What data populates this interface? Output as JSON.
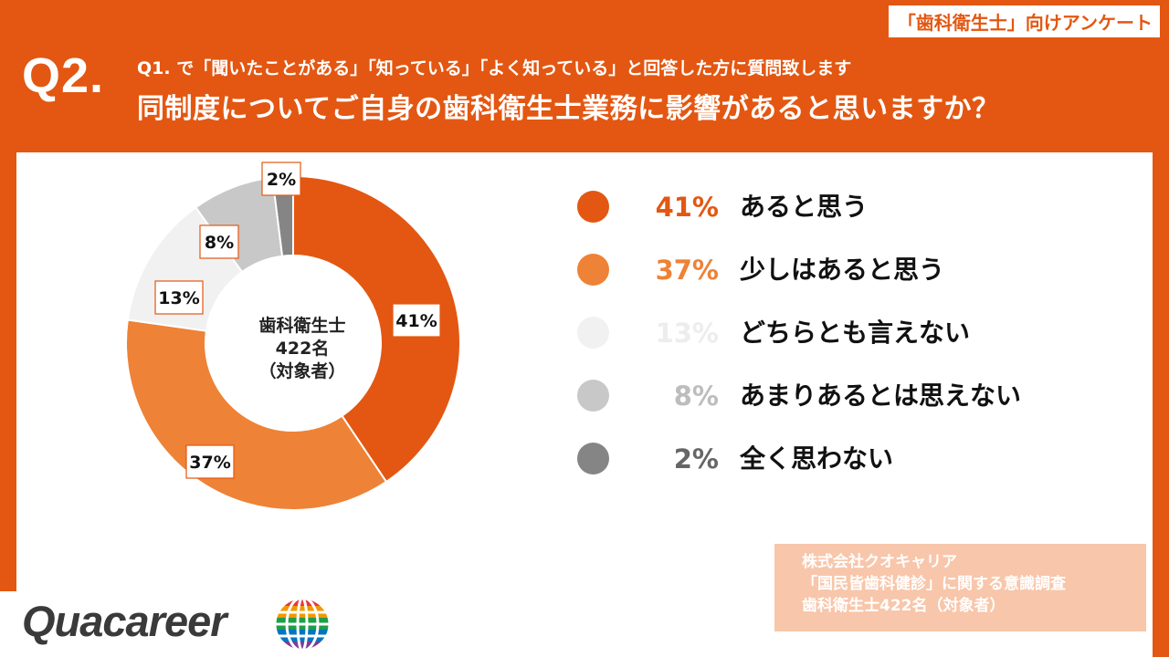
{
  "header": {
    "tag": "「歯科衛生士」向けアンケート",
    "question_number": "Q2.",
    "question_sub": "Q1. で「聞いたことがある」「知っている」「よく知っている」と回答した方に質問致します",
    "question_main": "同制度についてご自身の歯科衛生士業務に影響があると思いますか？"
  },
  "chart_data": {
    "type": "pie",
    "center_label": [
      "歯科衛生士",
      "422名",
      "（対象者）"
    ],
    "categories": [
      "あると思う",
      "少しはあると思う",
      "どちらとも言えない",
      "あまりあるとは思えない",
      "全く思わない"
    ],
    "values": [
      41,
      37,
      13,
      8,
      2
    ],
    "value_labels": [
      "41%",
      "37%",
      "13%",
      "8%",
      "2%"
    ],
    "colors": [
      "#E35712",
      "#EE8236",
      "#F1F1F1",
      "#C8C8C8",
      "#858585"
    ],
    "legend_label_colors": [
      "#E35712",
      "#EE8236",
      "#EDEDED",
      "#BDBDBD",
      "#666666"
    ],
    "legend_position": "right"
  },
  "source": {
    "lines": [
      "株式会社クオキャリア",
      "「国民皆歯科健診」に関する意識調査",
      "歯科衛生士422名（対象者）"
    ]
  },
  "logo": {
    "text": "Quacareer",
    "icon": "globe-logo-icon"
  }
}
